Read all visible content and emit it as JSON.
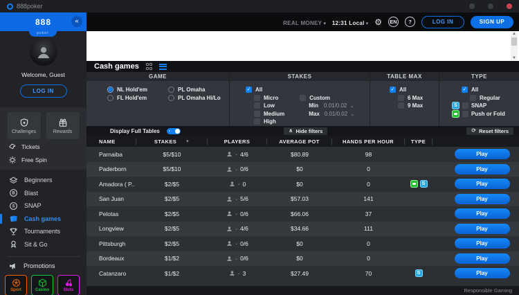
{
  "titlebar": {
    "app_name": "888poker"
  },
  "topnav": {
    "money_mode": "REAL MONEY",
    "clock": "12:31 Local",
    "language": "EN",
    "help": "?",
    "login_label": "LOG IN",
    "signup_label": "SIGN UP"
  },
  "sidebar": {
    "logo": "888",
    "logo_sub": "poker",
    "collapse": "«",
    "welcome": "Welcome, Guest",
    "login_label": "LOG IN",
    "cards": [
      {
        "label": "Challenges"
      },
      {
        "label": "Rewards"
      }
    ],
    "promo_rows": [
      {
        "label": "Tickets"
      },
      {
        "label": "Free Spin"
      }
    ],
    "menu": [
      {
        "label": "Beginners"
      },
      {
        "label": "Blast"
      },
      {
        "label": "SNAP"
      },
      {
        "label": "Cash games",
        "active": true
      },
      {
        "label": "Tournaments"
      },
      {
        "label": "Sit & Go"
      }
    ],
    "promotions_label": "Promotions",
    "tiles": [
      {
        "label": "Sport",
        "color": "#e8630a"
      },
      {
        "label": "Casino",
        "color": "#19c53c"
      },
      {
        "label": "Slots",
        "color": "#e01ee0"
      }
    ]
  },
  "main": {
    "title": "Cash games",
    "filters": {
      "game": {
        "header": "GAME",
        "options": [
          {
            "label": "NL Hold'em",
            "selected": true
          },
          {
            "label": "FL Hold'em",
            "selected": false
          },
          {
            "label": "PL Omaha",
            "selected": false
          },
          {
            "label": "PL Omaha Hi/Lo",
            "selected": false
          }
        ]
      },
      "stakes": {
        "header": "STAKES",
        "all_label": "All",
        "all_checked": true,
        "levels": [
          {
            "label": "Micro"
          },
          {
            "label": "Low"
          },
          {
            "label": "Medium"
          },
          {
            "label": "High"
          }
        ],
        "custom_label": "Custom",
        "custom_checked": false,
        "min_label": "Min",
        "min_value": "0.01/0.02",
        "max_label": "Max",
        "max_value": "0.01/0.02"
      },
      "table_max": {
        "header": "TABLE MAX",
        "all_label": "All",
        "all_checked": true,
        "options": [
          {
            "label": "6 Max"
          },
          {
            "label": "9 Max"
          }
        ]
      },
      "type": {
        "header": "TYPE",
        "all_label": "All",
        "all_checked": true,
        "regular_label": "Regular",
        "snap_label": "SNAP",
        "push_or_fold_label": "Push or Fold",
        "snap_icon_letter": "S"
      }
    },
    "toolbar": {
      "full_tables_label": "Display Full Tables",
      "full_tables_on": true,
      "hide_filters_label": "Hide filters",
      "reset_filters_label": "Reset filters"
    },
    "table": {
      "columns": {
        "name": "NAME",
        "stakes": "STAKES",
        "players": "PLAYERS",
        "avg_pot": "AVERAGE POT",
        "hands": "HANDS PER HOUR",
        "type": "TYPE"
      },
      "play_label": "Play",
      "rows": [
        {
          "name": "Parnaiba",
          "stakes": "$5/$10",
          "players": "4/6",
          "avg_pot": "$80.89",
          "hands": "98",
          "type": []
        },
        {
          "name": "Paderborn",
          "stakes": "$5/$10",
          "players": "0/6",
          "avg_pot": "$0",
          "hands": "0",
          "type": []
        },
        {
          "name": "Amadora ( P..",
          "stakes": "$2/$5",
          "players": "0",
          "avg_pot": "$0",
          "hands": "0",
          "type": [
            "push-or-fold",
            "snap"
          ]
        },
        {
          "name": "San Juan",
          "stakes": "$2/$5",
          "players": "5/6",
          "avg_pot": "$57.03",
          "hands": "141",
          "type": []
        },
        {
          "name": "Pelotas",
          "stakes": "$2/$5",
          "players": "0/6",
          "avg_pot": "$66.06",
          "hands": "37",
          "type": []
        },
        {
          "name": "Longview",
          "stakes": "$2/$5",
          "players": "4/6",
          "avg_pot": "$34.66",
          "hands": "111",
          "type": []
        },
        {
          "name": "Pittsburgh",
          "stakes": "$2/$5",
          "players": "0/6",
          "avg_pot": "$0",
          "hands": "0",
          "type": []
        },
        {
          "name": "Bordeaux",
          "stakes": "$1/$2",
          "players": "0/6",
          "avg_pot": "$0",
          "hands": "0",
          "type": []
        },
        {
          "name": "Catanzaro",
          "stakes": "$1/$2",
          "players": "3",
          "avg_pot": "$27.49",
          "hands": "70",
          "type": [
            "snap"
          ]
        }
      ]
    },
    "footer": {
      "responsible_gaming": "Responsible Gaming"
    }
  },
  "colors": {
    "accent": "#0d6fe4",
    "snap_icon": "#29a9e1",
    "push_or_fold_icon": "#23c12e",
    "sport": "#e8630a",
    "casino": "#19c53c",
    "slots": "#e01ee0",
    "close_button": "#c9444d"
  }
}
